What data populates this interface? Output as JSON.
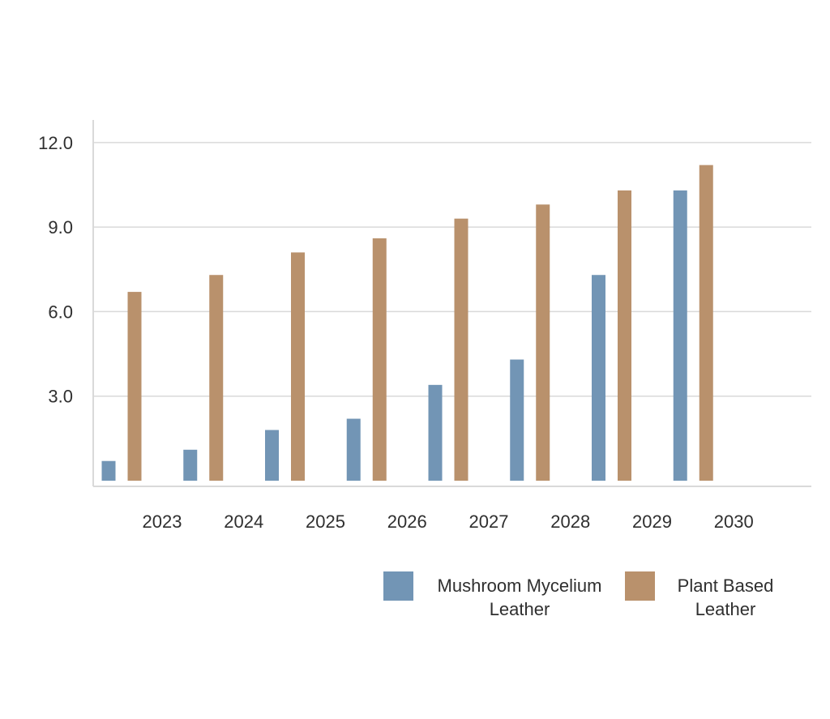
{
  "chart_data": {
    "type": "bar",
    "categories": [
      "2023",
      "2024",
      "2025",
      "2026",
      "2027",
      "2028",
      "2029",
      "2030"
    ],
    "series": [
      {
        "name": "Mushroom Mycelium Leather",
        "color": "#7295b5",
        "values": [
          0.7,
          1.1,
          1.8,
          2.2,
          3.4,
          4.3,
          7.3,
          10.3
        ]
      },
      {
        "name": "Plant Based Leather",
        "color": "#b9916c",
        "values": [
          6.7,
          7.3,
          8.1,
          8.6,
          9.3,
          9.8,
          10.3,
          11.2
        ]
      }
    ],
    "yticks": [
      "3.0",
      "6.0",
      "9.0",
      "12.0"
    ],
    "ylim": [
      -0.2,
      12.8
    ],
    "grid": true,
    "legend_position": "bottom-right",
    "legend": [
      {
        "lines": [
          "Mushroom Mycelium",
          "Leather"
        ]
      },
      {
        "lines": [
          "Plant Based",
          "Leather"
        ]
      }
    ],
    "axis_color": "#d9d9d9",
    "text_color": "#2f2f2f"
  }
}
